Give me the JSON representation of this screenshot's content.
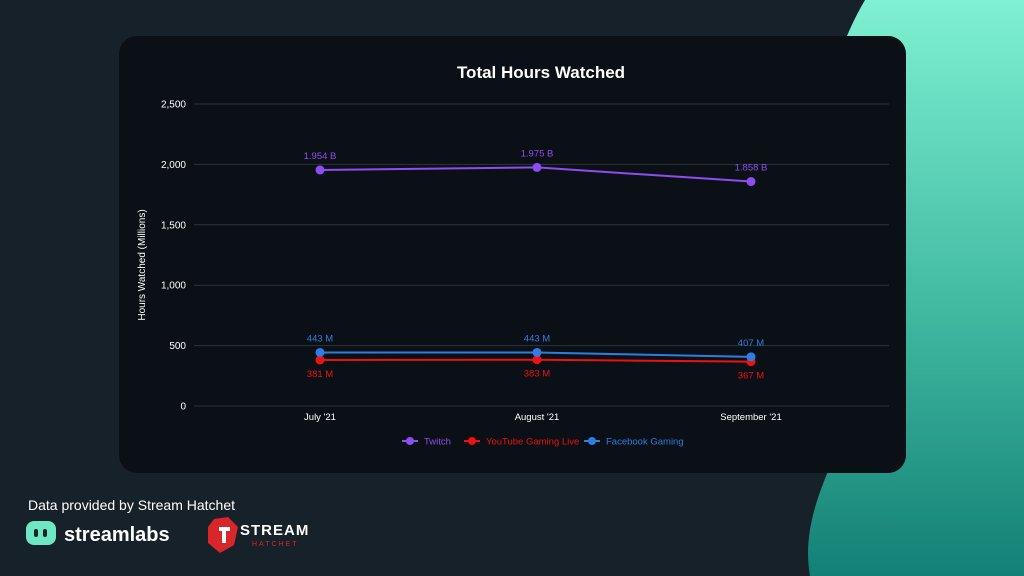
{
  "footer": {
    "credit": "Data provided by Stream Hatchet",
    "logo_streamlabs": "streamlabs",
    "logo_stream": "STREAM",
    "logo_hatchet": "HATCHET"
  },
  "colors": {
    "background": "#17212a",
    "accent_green": "#6ee8c4",
    "card": "#0b1016"
  },
  "chart_data": {
    "type": "line",
    "title": "Total Hours Watched",
    "xlabel": "",
    "ylabel": "Hours Watched (Millions)",
    "categories": [
      "July '21",
      "August '21",
      "September '21"
    ],
    "ylim": [
      0,
      2500
    ],
    "yticks": [
      0,
      500,
      1000,
      1500,
      2000,
      2500
    ],
    "ytick_labels": [
      "0",
      "500",
      "1,000",
      "1,500",
      "2,000",
      "2,500"
    ],
    "grid": true,
    "legend_position": "bottom",
    "series": [
      {
        "name": "Twitch",
        "values": [
          1954,
          1975,
          1858
        ],
        "labels": [
          "1.954 B",
          "1.975 B",
          "1.858 B"
        ],
        "color": "#8f4cf0",
        "label_pos": "above"
      },
      {
        "name": "YouTube Gaming Live",
        "values": [
          381,
          383,
          367
        ],
        "labels": [
          "381 M",
          "383 M",
          "367 M"
        ],
        "color": "#ee1111",
        "label_pos": "below"
      },
      {
        "name": "Facebook Gaming",
        "values": [
          443,
          443,
          407
        ],
        "labels": [
          "443 M",
          "443 M",
          "407 M"
        ],
        "color": "#2f7de0",
        "label_pos": "above"
      }
    ]
  }
}
